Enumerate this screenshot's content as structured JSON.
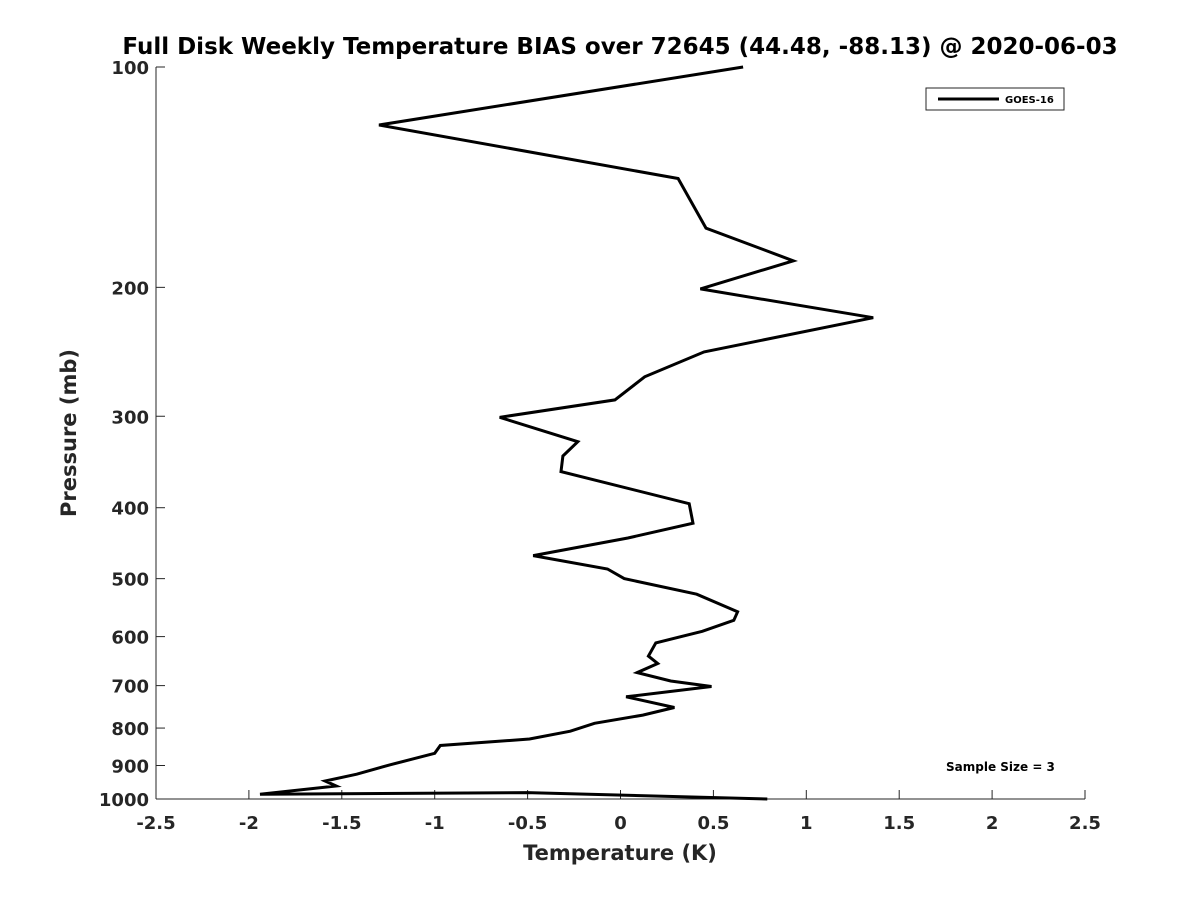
{
  "chart_data": {
    "type": "line",
    "title": "Full Disk Weekly Temperature BIAS over 72645 (44.48, -88.13) @ 2020-06-03",
    "xlabel": "Temperature (K)",
    "ylabel": "Pressure (mb)",
    "xlim": [
      -2.5,
      2.5
    ],
    "ylim": [
      100,
      1000
    ],
    "y_scale": "log",
    "y_reversed": true,
    "grid": false,
    "legend_position": "top-right",
    "x_ticks": [
      "-2.5",
      "-2",
      "-1.5",
      "-1",
      "-0.5",
      "0",
      "0.5",
      "1",
      "1.5",
      "2",
      "2.5"
    ],
    "y_ticks": [
      "100",
      "200",
      "300",
      "400",
      "500",
      "600",
      "700",
      "800",
      "900",
      "1000"
    ],
    "annotation": "Sample Size = 3",
    "series": [
      {
        "name": "GOES-16",
        "color": "#000000",
        "points": [
          [
            0.66,
            100
          ],
          [
            -1.3,
            120
          ],
          [
            0.31,
            142
          ],
          [
            0.46,
            166
          ],
          [
            0.93,
            184
          ],
          [
            0.43,
            201
          ],
          [
            1.36,
            220
          ],
          [
            0.45,
            245
          ],
          [
            0.13,
            265
          ],
          [
            -0.03,
            285
          ],
          [
            -0.65,
            301
          ],
          [
            -0.23,
            325
          ],
          [
            -0.31,
            340
          ],
          [
            -0.32,
            357
          ],
          [
            0.37,
            395
          ],
          [
            0.39,
            420
          ],
          [
            0.04,
            440
          ],
          [
            -0.47,
            465
          ],
          [
            -0.07,
            485
          ],
          [
            0.02,
            500
          ],
          [
            0.41,
            525
          ],
          [
            0.63,
            555
          ],
          [
            0.61,
            570
          ],
          [
            0.44,
            590
          ],
          [
            0.19,
            612
          ],
          [
            0.15,
            638
          ],
          [
            0.2,
            653
          ],
          [
            0.09,
            672
          ],
          [
            0.27,
            690
          ],
          [
            0.49,
            702
          ],
          [
            0.03,
            725
          ],
          [
            0.29,
            750
          ],
          [
            0.12,
            768
          ],
          [
            -0.14,
            788
          ],
          [
            -0.27,
            808
          ],
          [
            -0.49,
            828
          ],
          [
            -0.97,
            845
          ],
          [
            -1.0,
            866
          ],
          [
            -1.12,
            882
          ],
          [
            -1.24,
            898
          ],
          [
            -1.42,
            925
          ],
          [
            -1.59,
            945
          ],
          [
            -1.53,
            960
          ],
          [
            -1.94,
            985
          ],
          [
            -0.5,
            980
          ],
          [
            0.79,
            1000
          ]
        ]
      }
    ]
  }
}
